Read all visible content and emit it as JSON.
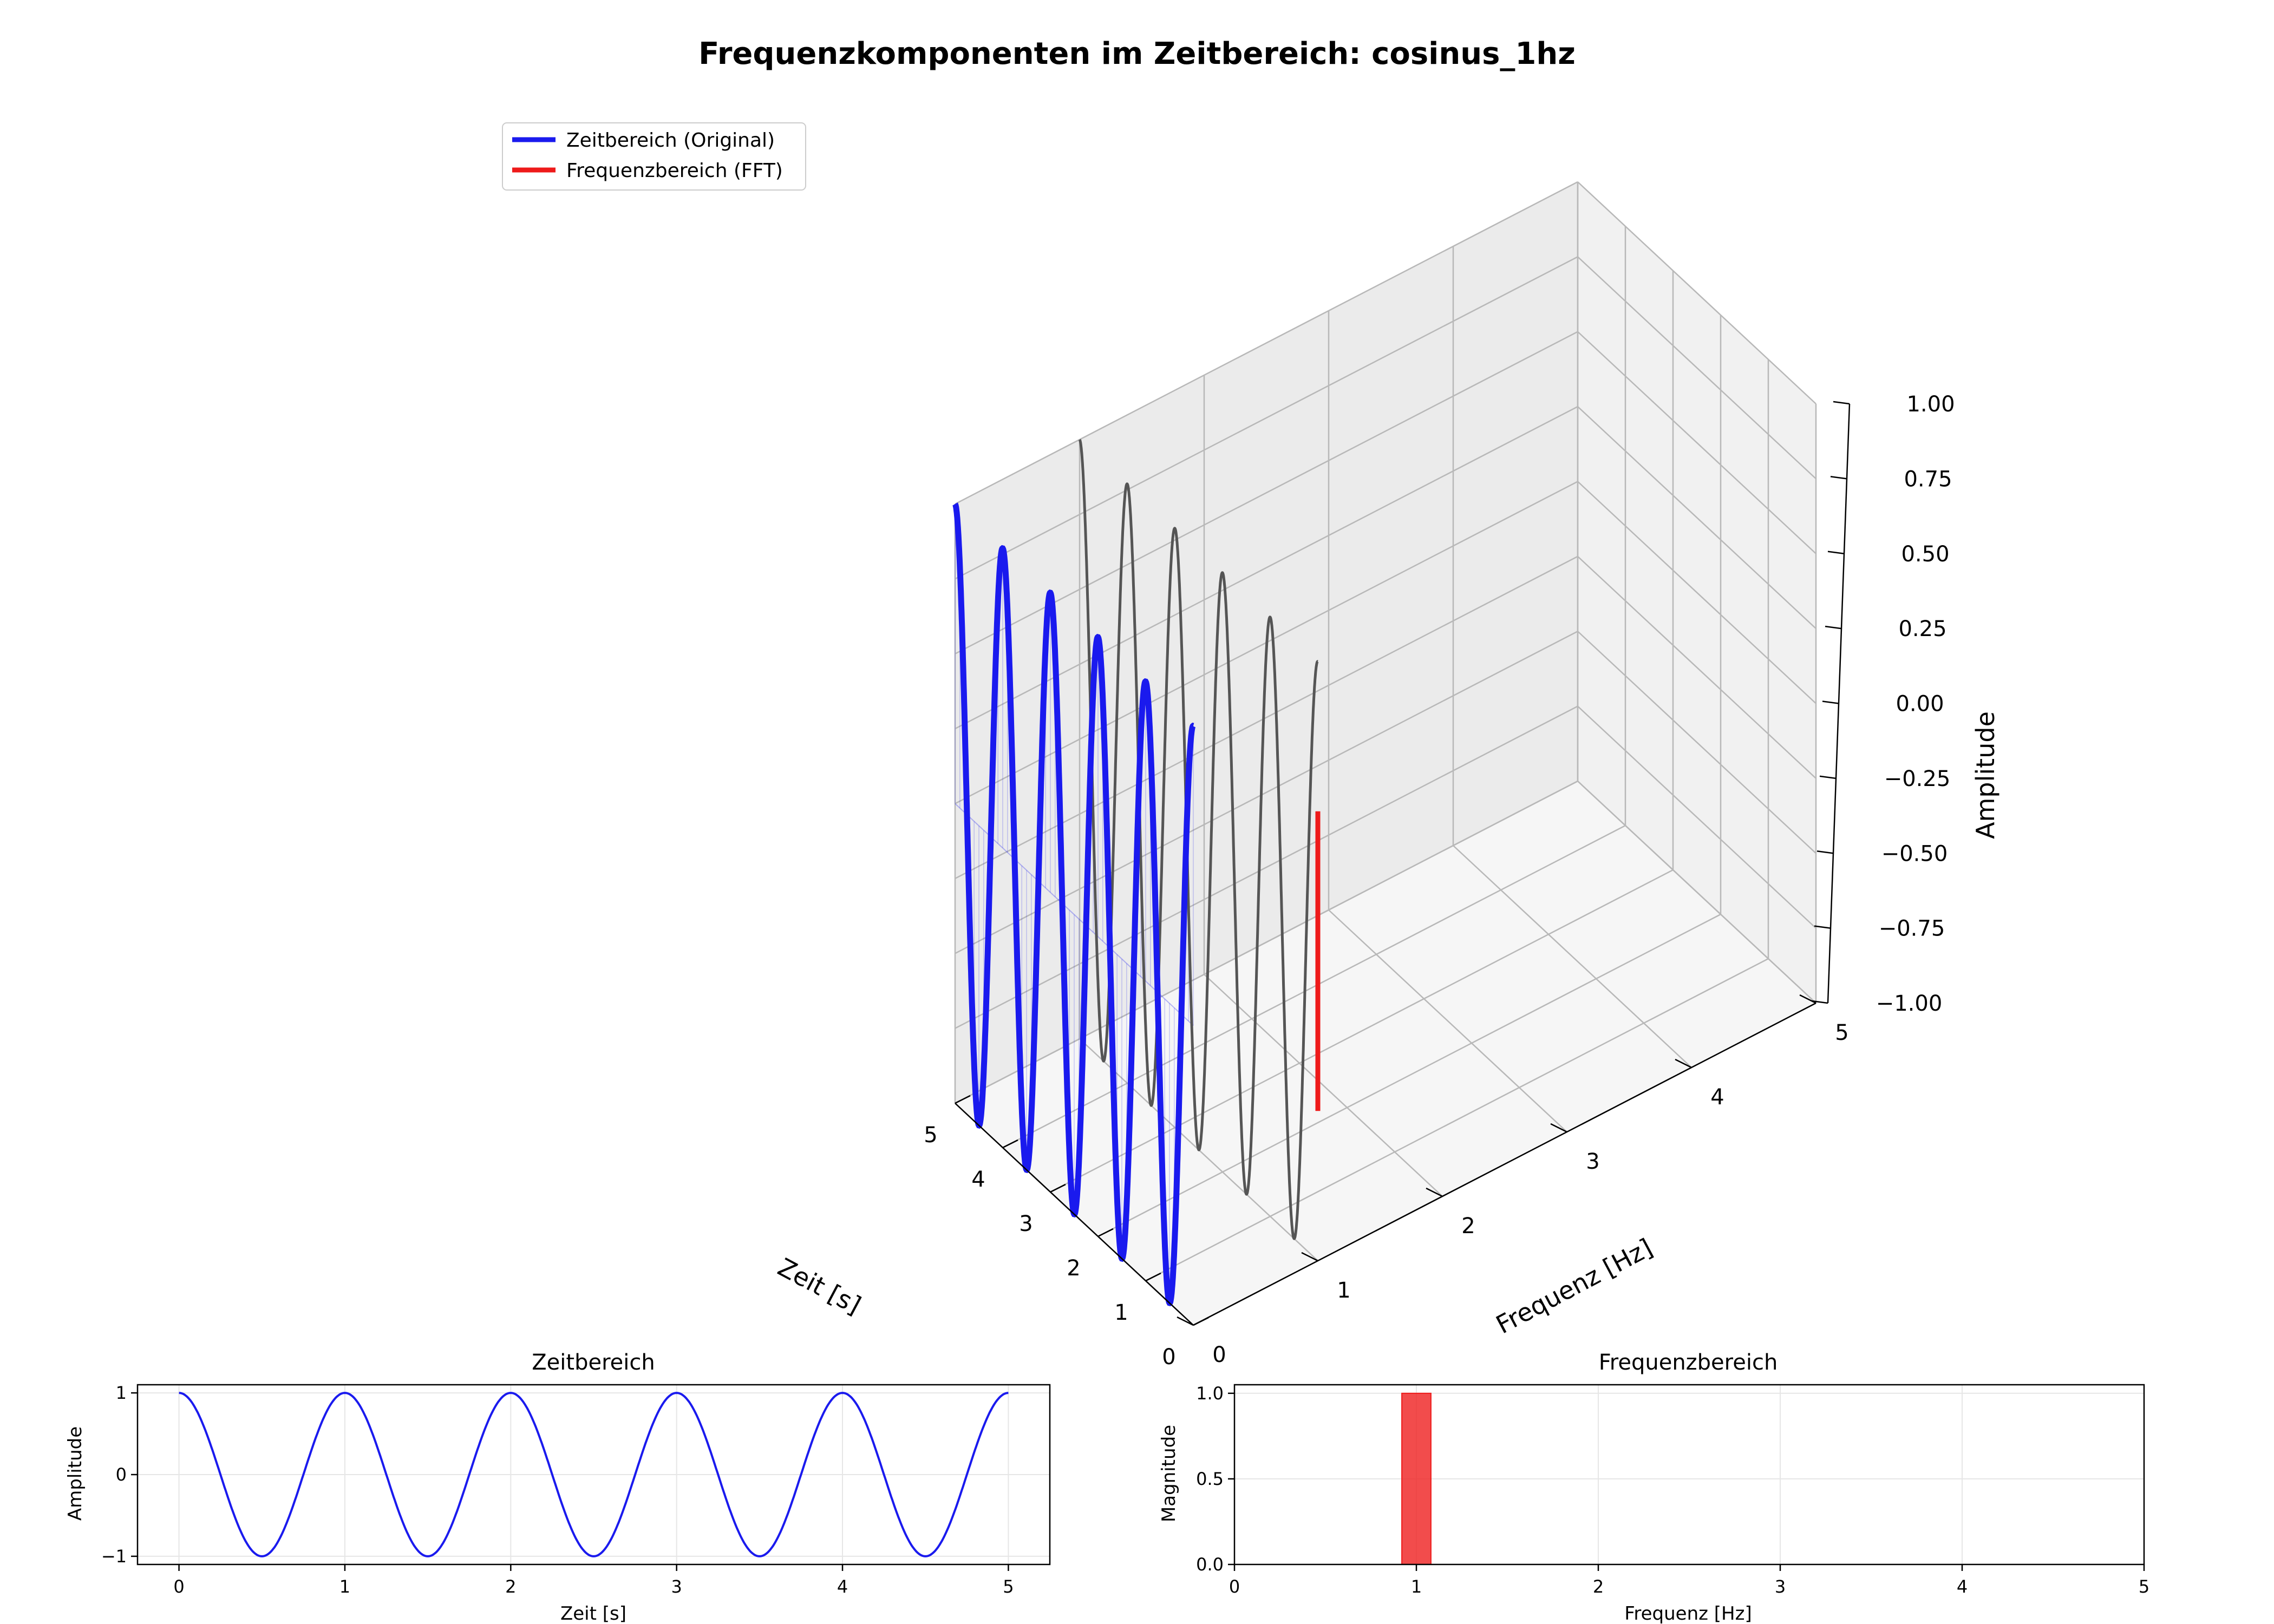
{
  "figure": {
    "title": "Frequenzkomponenten im Zeitbereich: cosinus_1hz"
  },
  "colors": {
    "time_series": "#1a1aee",
    "fft": "#ee1a1a",
    "projection": "#555555",
    "pane_back": "#f1f1f1",
    "pane_side": "#ebebeb",
    "pane_floor": "#f6f6f6",
    "grid": "#b8b8b8",
    "axis": "#000000"
  },
  "legend": {
    "placement": "upper-left",
    "entries": [
      {
        "label": "Zeitbereich (Original)",
        "color": "#1a1aee"
      },
      {
        "label": "Frequenzbereich (FFT)",
        "color": "#ee1a1a"
      }
    ]
  },
  "chart_data": [
    {
      "id": "main3d",
      "type": "line",
      "projection": "3d",
      "xlabel": "Zeit [s]",
      "ylabel": "Frequenz [Hz]",
      "zlabel": "Amplitude",
      "xlim": [
        0,
        5
      ],
      "ylim": [
        0,
        5
      ],
      "zlim": [
        -1,
        1
      ],
      "xticks": [
        0,
        1,
        2,
        3,
        4,
        5
      ],
      "yticks": [
        0,
        1,
        2,
        3,
        4,
        5
      ],
      "zticks": [
        -1.0,
        -0.75,
        -0.5,
        -0.25,
        0.0,
        0.25,
        0.5,
        0.75,
        1.0
      ],
      "ztick_labels": [
        "−1.00",
        "−0.75",
        "−0.50",
        "−0.25",
        "0.00",
        "0.25",
        "0.50",
        "0.75",
        "1.00"
      ],
      "grid": true,
      "series": [
        {
          "name": "Zeitbereich (Original)",
          "function": "cos(2*pi*1*t)",
          "frequency": 1,
          "t_range": [
            0,
            5
          ],
          "y_value": 0,
          "color": "#1a1aee"
        },
        {
          "name": "Frequenzbereich (FFT)",
          "kind": "stem",
          "x_value": 0,
          "y_value": 1,
          "z_range": [
            -0.5,
            0.5
          ],
          "color": "#ee1a1a"
        }
      ],
      "projection_curve": {
        "function": "cos(2*pi*1*t)",
        "t_range": [
          0,
          5
        ],
        "y_value": 1
      }
    },
    {
      "id": "time",
      "type": "line",
      "title": "Zeitbereich",
      "xlabel": "Zeit [s]",
      "ylabel": "Amplitude",
      "xlim": [
        -0.25,
        5.25
      ],
      "ylim": [
        -1.1,
        1.1
      ],
      "xticks": [
        0,
        1,
        2,
        3,
        4,
        5
      ],
      "yticks": [
        -1,
        0,
        1
      ],
      "ytick_labels": [
        "−1",
        "0",
        "1"
      ],
      "grid": true,
      "series": [
        {
          "function": "cos(2*pi*1*t)",
          "t_range": [
            0,
            5
          ],
          "color": "#1a1aee"
        }
      ]
    },
    {
      "id": "freq",
      "type": "bar",
      "title": "Frequenzbereich",
      "xlabel": "Frequenz [Hz]",
      "ylabel": "Magnitude",
      "xlim": [
        0,
        5
      ],
      "ylim": [
        0,
        1.05
      ],
      "xticks": [
        0,
        1,
        2,
        3,
        4,
        5
      ],
      "yticks": [
        0,
        0.5,
        1.0
      ],
      "ytick_labels": [
        "0.0",
        "0.5",
        "1.0"
      ],
      "grid": true,
      "bars": [
        {
          "x": 1.0,
          "width": 0.16,
          "value": 1.0,
          "color": "#ee1a1a"
        }
      ]
    }
  ]
}
